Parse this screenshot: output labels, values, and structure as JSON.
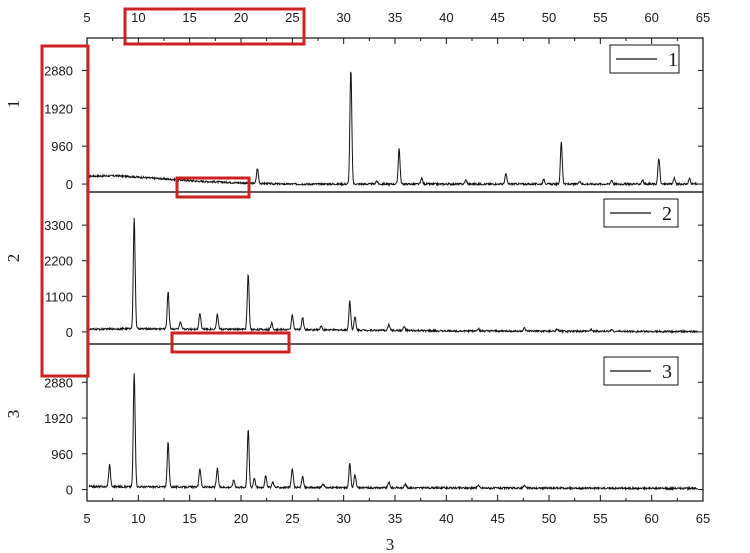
{
  "chart_data": {
    "type": "line",
    "xlabel": "3",
    "xlim": [
      5,
      65
    ],
    "x_ticks": [
      5,
      10,
      15,
      20,
      25,
      30,
      35,
      40,
      45,
      50,
      55,
      60,
      65
    ],
    "top_ticks_shown": true,
    "grid": false,
    "legend_placement": "top-right",
    "panels": [
      {
        "series_name": "1",
        "ylabel": "1",
        "ylim": [
          -100,
          3600
        ],
        "y_ticks": [
          0,
          960,
          1920,
          2880
        ],
        "baseline_points": [
          [
            5.2,
            200
          ],
          [
            8,
            210
          ],
          [
            12,
            140
          ],
          [
            16,
            70
          ],
          [
            20,
            30
          ],
          [
            24,
            0
          ],
          [
            28,
            0
          ],
          [
            32,
            0
          ],
          [
            40,
            0
          ],
          [
            50,
            0
          ],
          [
            64.5,
            0
          ]
        ],
        "peaks": [
          [
            21.6,
            380
          ],
          [
            30.7,
            2880
          ],
          [
            33.2,
            80
          ],
          [
            35.4,
            900
          ],
          [
            37.6,
            150
          ],
          [
            41.9,
            100
          ],
          [
            45.8,
            260
          ],
          [
            49.5,
            120
          ],
          [
            51.2,
            1060
          ],
          [
            53.0,
            80
          ],
          [
            56.1,
            100
          ],
          [
            59.1,
            100
          ],
          [
            60.7,
            650
          ],
          [
            62.2,
            150
          ],
          [
            63.7,
            140
          ]
        ],
        "markers": [
          {
            "x": 10,
            "y": 3620
          },
          {
            "x": 25,
            "y": 3620
          }
        ]
      },
      {
        "series_name": "2",
        "ylabel": "2",
        "ylim": [
          -250,
          4200
        ],
        "y_ticks": [
          0,
          1100,
          2200,
          3300
        ],
        "baseline_points": [
          [
            5.2,
            80
          ],
          [
            9,
            100
          ],
          [
            30,
            60
          ],
          [
            40,
            30
          ],
          [
            64.5,
            10
          ]
        ],
        "peaks": [
          [
            9.6,
            3400
          ],
          [
            12.9,
            1150
          ],
          [
            14.1,
            200
          ],
          [
            16.0,
            500
          ],
          [
            17.7,
            450
          ],
          [
            20.7,
            1700
          ],
          [
            23.0,
            200
          ],
          [
            25.0,
            470
          ],
          [
            26.0,
            380
          ],
          [
            27.8,
            120
          ],
          [
            30.6,
            900
          ],
          [
            31.1,
            400
          ],
          [
            34.4,
            180
          ],
          [
            35.9,
            120
          ],
          [
            43.1,
            80
          ],
          [
            47.6,
            90
          ],
          [
            50.8,
            70
          ],
          [
            54.1,
            60
          ],
          [
            56.1,
            60
          ]
        ]
      },
      {
        "series_name": "3",
        "ylabel": "3",
        "ylim": [
          -200,
          3800
        ],
        "y_ticks": [
          0,
          960,
          1920,
          2880
        ],
        "baseline_points": [
          [
            5.2,
            80
          ],
          [
            30,
            50
          ],
          [
            64.5,
            30
          ]
        ],
        "peaks": [
          [
            7.2,
            600
          ],
          [
            9.6,
            3050
          ],
          [
            12.9,
            1200
          ],
          [
            16.0,
            500
          ],
          [
            17.7,
            500
          ],
          [
            19.3,
            200
          ],
          [
            20.7,
            1550
          ],
          [
            21.3,
            250
          ],
          [
            22.4,
            300
          ],
          [
            23.1,
            150
          ],
          [
            25.0,
            500
          ],
          [
            26.0,
            300
          ],
          [
            28.0,
            100
          ],
          [
            30.6,
            650
          ],
          [
            31.1,
            350
          ],
          [
            34.4,
            150
          ],
          [
            36.0,
            100
          ],
          [
            43.1,
            80
          ],
          [
            47.6,
            70
          ]
        ]
      }
    ]
  },
  "overlays": {
    "color": "#cc2222"
  }
}
